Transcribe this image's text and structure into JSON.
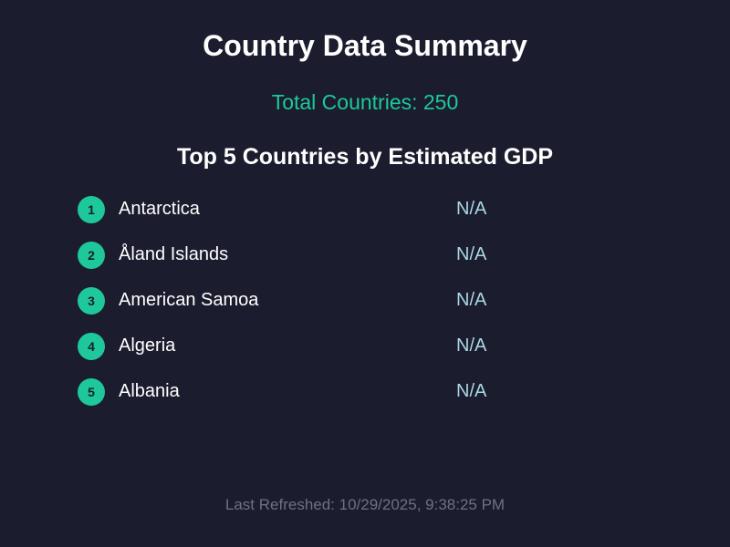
{
  "header": {
    "title": "Country Data Summary",
    "total_countries": "Total Countries: 250"
  },
  "top_list": {
    "heading": "Top 5 Countries by Estimated GDP",
    "items": [
      {
        "rank": "1",
        "name": "Antarctica",
        "gdp": "N/A"
      },
      {
        "rank": "2",
        "name": "Åland Islands",
        "gdp": "N/A"
      },
      {
        "rank": "3",
        "name": "American Samoa",
        "gdp": "N/A"
      },
      {
        "rank": "4",
        "name": "Algeria",
        "gdp": "N/A"
      },
      {
        "rank": "5",
        "name": "Albania",
        "gdp": "N/A"
      }
    ]
  },
  "footer": {
    "last_refreshed": "Last Refreshed: 10/29/2025, 9:38:25 PM"
  },
  "colors": {
    "background": "#1b1c2e",
    "accent": "#1ec89b",
    "value_text": "#a9d8e4",
    "muted_text": "#6f7180"
  }
}
